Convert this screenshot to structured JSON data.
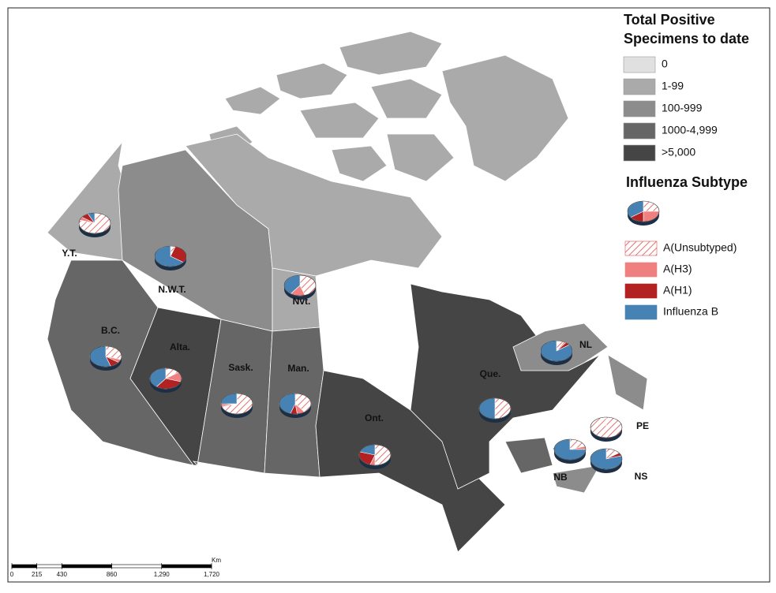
{
  "legend": {
    "title_lines": [
      "Total Positive",
      "Specimens to date"
    ],
    "classes": [
      {
        "label": "0",
        "color": "#e0e0e0"
      },
      {
        "label": "1-99",
        "color": "#aaaaaa"
      },
      {
        "label": "100-999",
        "color": "#8c8c8c"
      },
      {
        "label": "1000-4,999",
        "color": "#666666"
      },
      {
        "label": ">5,000",
        "color": "#454545"
      }
    ]
  },
  "subtype_legend": {
    "title": "Influenza Subtype",
    "items": [
      {
        "label": "A(Unsubtyped)",
        "color": "#e05050"
      },
      {
        "label": "A(H3)",
        "color": "#f08080"
      },
      {
        "label": "A(H1)",
        "color": "#b22222"
      },
      {
        "label": "Influenza B",
        "color": "#4682b4"
      }
    ]
  },
  "regions": [
    {
      "label": "Y.T.",
      "class": 1,
      "shares": [
        80,
        5,
        8,
        7
      ]
    },
    {
      "label": "N.W.T.",
      "class": 2,
      "shares": [
        5,
        0,
        30,
        65
      ]
    },
    {
      "label": "Nvt.",
      "class": 1,
      "shares": [
        45,
        15,
        0,
        40
      ]
    },
    {
      "label": "B.C.",
      "class": 3,
      "shares": [
        30,
        5,
        10,
        55
      ]
    },
    {
      "label": "Alta.",
      "class": 4,
      "shares": [
        15,
        15,
        30,
        40
      ]
    },
    {
      "label": "Sask.",
      "class": 3,
      "shares": [
        70,
        3,
        2,
        25
      ]
    },
    {
      "label": "Man.",
      "class": 3,
      "shares": [
        40,
        8,
        7,
        45
      ]
    },
    {
      "label": "Ont.",
      "class": 4,
      "shares": [
        50,
        5,
        25,
        20
      ]
    },
    {
      "label": "Que.",
      "class": 4,
      "shares": [
        50,
        0,
        0,
        50
      ]
    },
    {
      "label": "NL",
      "class": 2,
      "shares": [
        8,
        2,
        5,
        85
      ]
    },
    {
      "label": "PE",
      "class": 2,
      "shares": [
        100,
        0,
        0,
        0
      ]
    },
    {
      "label": "NB",
      "class": 3,
      "shares": [
        20,
        5,
        0,
        75
      ]
    },
    {
      "label": "NS",
      "class": 2,
      "shares": [
        15,
        0,
        5,
        80
      ]
    }
  ],
  "scale_bar": {
    "unit": "Km",
    "ticks": [
      0,
      215,
      430,
      860,
      {
        "value": 1290,
        "label": "1,290"
      },
      {
        "value": 1720,
        "label": "1,720"
      }
    ]
  }
}
